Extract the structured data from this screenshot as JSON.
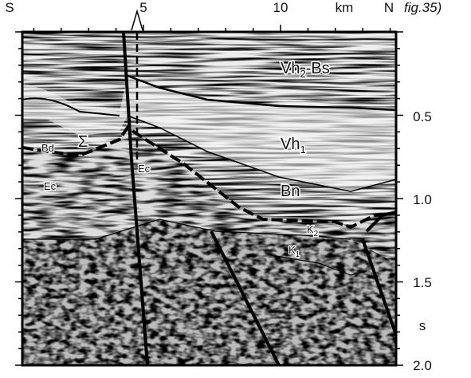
{
  "header": {
    "left": "S",
    "right": "N",
    "unit": "km",
    "caption": "fig.35)"
  },
  "top_axis": {
    "labels": [
      "5",
      "10"
    ]
  },
  "right_axis": {
    "labels": [
      "0.5",
      "1.0",
      "1.5",
      "2.0"
    ],
    "unit": "s"
  },
  "annotations": {
    "vh2_bs": {
      "base": "Vh",
      "sub": "2",
      "rest": "-Bs"
    },
    "vh1": {
      "base": "Vh",
      "sub": "1"
    },
    "bn": "Bn",
    "bd": "Bd",
    "sigma": "Σ",
    "ec_left": "Ec",
    "ec_fault": "Ec",
    "k2": {
      "base": "K",
      "sub": "2"
    },
    "k1": {
      "base": "K",
      "sub": "1"
    }
  }
}
